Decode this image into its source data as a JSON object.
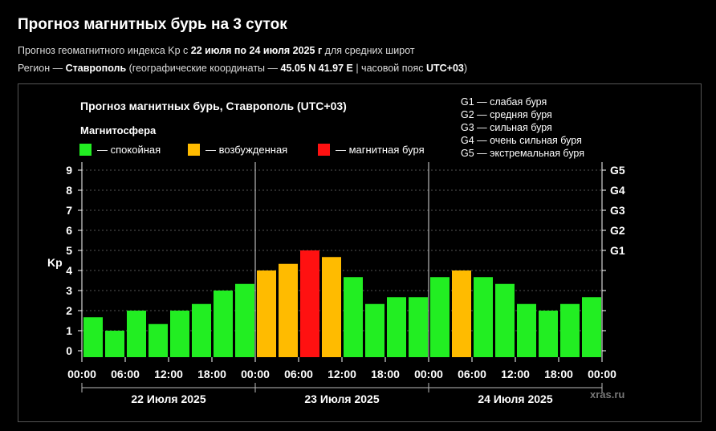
{
  "page": {
    "title": "Прогноз магнитных бурь на 3 суток",
    "line1_prefix": "Прогноз геомагнитного индекса Kp с ",
    "line1_dates": "22 июля по 24 июля 2025 г",
    "line1_suffix": " для средних широт",
    "line2_prefix": "Регион — ",
    "line2_region": "Ставрополь",
    "line2_mid": " (географические координаты — ",
    "line2_coords": "45.05 N 41.97 E",
    "line2_tz_prefix": " | часовой пояс ",
    "line2_tz": "UTC+03",
    "line2_end": ")"
  },
  "chart_data": {
    "type": "bar",
    "title": "Прогноз магнитных бурь, Ставрополь (UTC+03)",
    "legend_title": "Магнитосфера",
    "legend": [
      {
        "label": "— спокойная",
        "color": "#22ee22"
      },
      {
        "label": "— возбужденная",
        "color": "#ffbb00"
      },
      {
        "label": "— магнитная буря",
        "color": "#ff1111"
      }
    ],
    "g_scale_legend": [
      "G1 — слабая буря",
      "G2 — средняя буря",
      "G3 — сильная буря",
      "G4 — очень сильная буря",
      "G5 — экстремальная буря"
    ],
    "ylabel": "Kp",
    "ylim": [
      0,
      9
    ],
    "yticks": [
      "0",
      "1",
      "2",
      "3",
      "4",
      "5",
      "6",
      "7",
      "8",
      "9"
    ],
    "right_ticks": [
      {
        "label": "G1",
        "kp": 5
      },
      {
        "label": "G2",
        "kp": 6
      },
      {
        "label": "G3",
        "kp": 7
      },
      {
        "label": "G4",
        "kp": 8
      },
      {
        "label": "G5",
        "kp": 9
      }
    ],
    "xticks": [
      "00:00",
      "06:00",
      "12:00",
      "18:00",
      "00:00",
      "06:00",
      "12:00",
      "18:00",
      "00:00",
      "06:00",
      "12:00",
      "18:00",
      "00:00"
    ],
    "days": [
      "22 Июля 2025",
      "23 Июля 2025",
      "24 Июля 2025"
    ],
    "values": [
      1.67,
      1.0,
      2.0,
      1.33,
      2.0,
      2.33,
      3.0,
      3.33,
      4.0,
      4.33,
      5.0,
      4.67,
      3.67,
      2.33,
      2.67,
      2.67,
      3.67,
      4.0,
      3.67,
      3.33,
      2.33,
      2.0,
      2.33,
      2.67
    ],
    "level": [
      "calm",
      "calm",
      "calm",
      "calm",
      "calm",
      "calm",
      "calm",
      "calm",
      "excited",
      "excited",
      "storm",
      "excited",
      "calm",
      "calm",
      "calm",
      "calm",
      "calm",
      "excited",
      "calm",
      "calm",
      "calm",
      "calm",
      "calm",
      "calm"
    ],
    "colors": {
      "calm": "#22ee22",
      "excited": "#ffbb00",
      "storm": "#ff1111"
    },
    "grid": true,
    "watermark": "xras.ru"
  }
}
